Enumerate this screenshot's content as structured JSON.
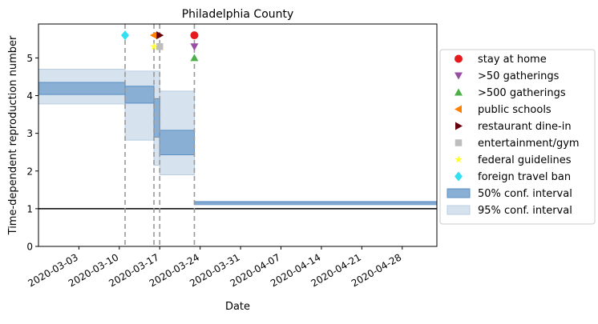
{
  "chart_data": {
    "type": "step",
    "title": "Philadelphia County",
    "xlabel": "Date",
    "ylabel": "Time-dependent reproduction number",
    "xlim": [
      "2020-02-25",
      "2020-05-04"
    ],
    "ylim": [
      0,
      5.9
    ],
    "x_ticks": [
      "2020-03-03",
      "2020-03-10",
      "2020-03-17",
      "2020-03-24",
      "2020-03-31",
      "2020-04-07",
      "2020-04-14",
      "2020-04-21",
      "2020-04-28"
    ],
    "y_ticks": [
      0,
      1,
      2,
      3,
      4,
      5
    ],
    "reference_line": {
      "y": 1,
      "color": "#000000"
    },
    "legend_position": "center-right outside",
    "colors": {
      "band50": "#8aafd4",
      "band50_edge": "#5b8ec4",
      "band95": "#d6e3ef",
      "vline": "#999999"
    },
    "intervals": [
      {
        "start": "2020-02-25",
        "end": "2020-03-11",
        "lo50": 4.03,
        "hi50": 4.35,
        "lo95": 3.78,
        "hi95": 4.7
      },
      {
        "start": "2020-03-11",
        "end": "2020-03-16",
        "lo50": 3.8,
        "hi50": 4.25,
        "lo95": 2.82,
        "hi95": 4.65
      },
      {
        "start": "2020-03-16",
        "end": "2020-03-17",
        "lo50": 2.9,
        "hi50": 3.92,
        "lo95": 2.15,
        "hi95": 4.65
      },
      {
        "start": "2020-03-17",
        "end": "2020-03-23",
        "lo50": 2.43,
        "hi50": 3.08,
        "lo95": 1.9,
        "hi95": 4.12
      },
      {
        "start": "2020-03-23",
        "end": "2020-05-04",
        "lo50": 1.12,
        "hi50": 1.18,
        "lo95": 1.1,
        "hi95": 1.2
      }
    ],
    "event_lines": [
      "2020-03-11",
      "2020-03-16",
      "2020-03-17",
      "2020-03-23"
    ],
    "markers": [
      {
        "name": "stay at home",
        "date": "2020-03-23",
        "y": 5.6,
        "symbol": "circle",
        "color": "#e41a1c"
      },
      {
        "name": ">50 gatherings",
        "date": "2020-03-23",
        "y": 5.3,
        "symbol": "triangle-down",
        "color": "#984ea3"
      },
      {
        "name": ">500 gatherings",
        "date": "2020-03-23",
        "y": 5.0,
        "symbol": "triangle-up",
        "color": "#4daf4a"
      },
      {
        "name": "public schools",
        "date": "2020-03-16",
        "y": 5.6,
        "symbol": "triangle-left",
        "color": "#ff7f00"
      },
      {
        "name": "restaurant dine-in",
        "date": "2020-03-17",
        "y": 5.6,
        "symbol": "triangle-right",
        "color": "#67000d"
      },
      {
        "name": "entertainment/gym",
        "date": "2020-03-17",
        "y": 5.3,
        "symbol": "square",
        "color": "#bdbdbd"
      },
      {
        "name": "federal guidelines",
        "date": "2020-03-16",
        "y": 5.3,
        "symbol": "star",
        "color": "#ffff33"
      },
      {
        "name": "foreign travel ban",
        "date": "2020-03-11",
        "y": 5.6,
        "symbol": "diamond",
        "color": "#33e0f0"
      }
    ],
    "legend": [
      {
        "label": "stay at home",
        "symbol": "circle",
        "color": "#e41a1c"
      },
      {
        "label": ">50 gatherings",
        "symbol": "triangle-down",
        "color": "#984ea3"
      },
      {
        "label": ">500 gatherings",
        "symbol": "triangle-up",
        "color": "#4daf4a"
      },
      {
        "label": "public schools",
        "symbol": "triangle-left",
        "color": "#ff7f00"
      },
      {
        "label": "restaurant dine-in",
        "symbol": "triangle-right",
        "color": "#67000d"
      },
      {
        "label": "entertainment/gym",
        "symbol": "square",
        "color": "#bdbdbd"
      },
      {
        "label": "federal guidelines",
        "symbol": "star",
        "color": "#ffff33"
      },
      {
        "label": "foreign travel ban",
        "symbol": "diamond",
        "color": "#33e0f0"
      },
      {
        "label": "50% conf. interval",
        "symbol": "patch50",
        "color": "#8aafd4"
      },
      {
        "label": "95% conf. interval",
        "symbol": "patch95",
        "color": "#d6e3ef"
      }
    ]
  }
}
